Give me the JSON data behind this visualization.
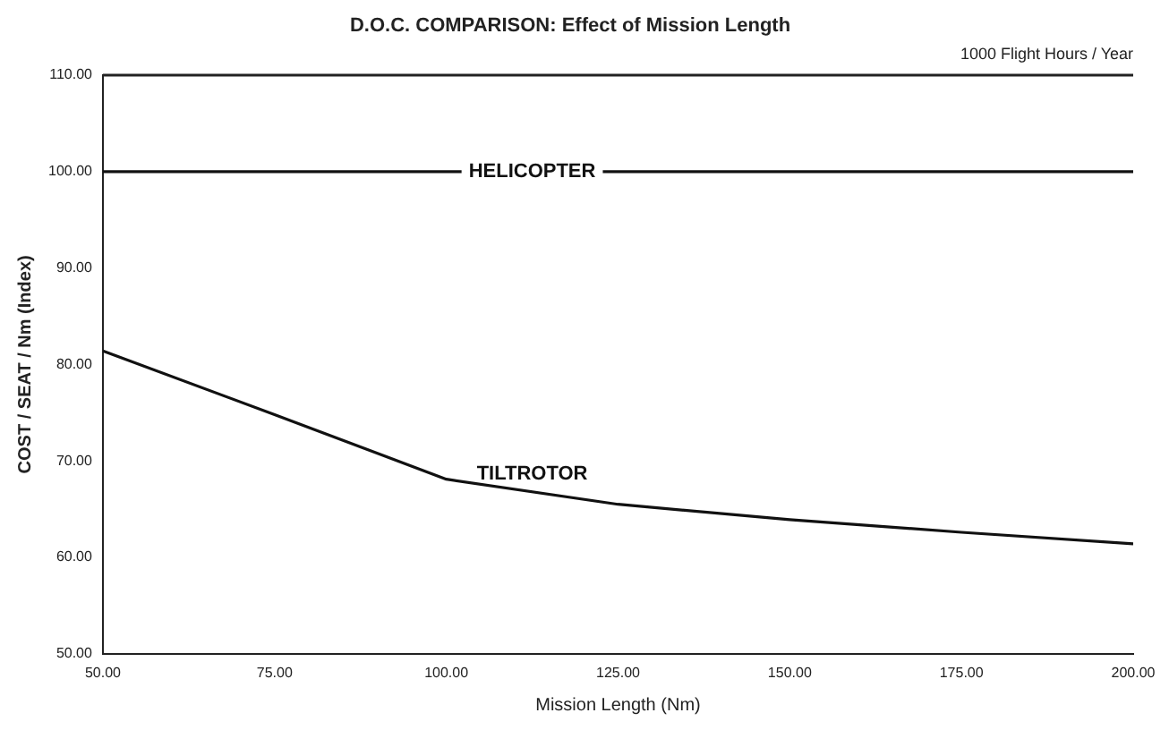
{
  "chart_data": {
    "type": "line",
    "title": "D.O.C. COMPARISON: Effect of Mission Length",
    "subtitle": "1000 Flight Hours / Year",
    "xlabel": "Mission Length (Nm)",
    "ylabel": "COST / SEAT / Nm (Index)",
    "x": [
      50,
      75,
      100,
      125,
      150,
      175,
      200
    ],
    "series": [
      {
        "name": "HELICOPTER",
        "color": "#111111",
        "values": [
          100,
          100,
          100,
          100,
          100,
          100,
          100
        ]
      },
      {
        "name": "TILTROTOR",
        "color": "#111111",
        "values": [
          81.4,
          74.8,
          68.1,
          65.5,
          63.9,
          62.6,
          61.4
        ]
      }
    ],
    "xlim": [
      50,
      200
    ],
    "xticks": [
      {
        "value": 50,
        "label": "50.00"
      },
      {
        "value": 75,
        "label": "75.00"
      },
      {
        "value": 100,
        "label": "100.00"
      },
      {
        "value": 125,
        "label": "125.00"
      },
      {
        "value": 150,
        "label": "150.00"
      },
      {
        "value": 175,
        "label": "175.00"
      },
      {
        "value": 200,
        "label": "200.00"
      }
    ],
    "ylim": [
      50,
      110
    ],
    "yticks": [
      {
        "value": 50,
        "label": "50.00"
      },
      {
        "value": 60,
        "label": "60.00"
      },
      {
        "value": 70,
        "label": "70.00"
      },
      {
        "value": 80,
        "label": "80.00"
      },
      {
        "value": 90,
        "label": "90.00"
      },
      {
        "value": 100,
        "label": "100.00"
      },
      {
        "value": 110,
        "label": "110.00"
      }
    ],
    "grid": false,
    "legend": false,
    "marker": "none",
    "line_style": "solid"
  }
}
